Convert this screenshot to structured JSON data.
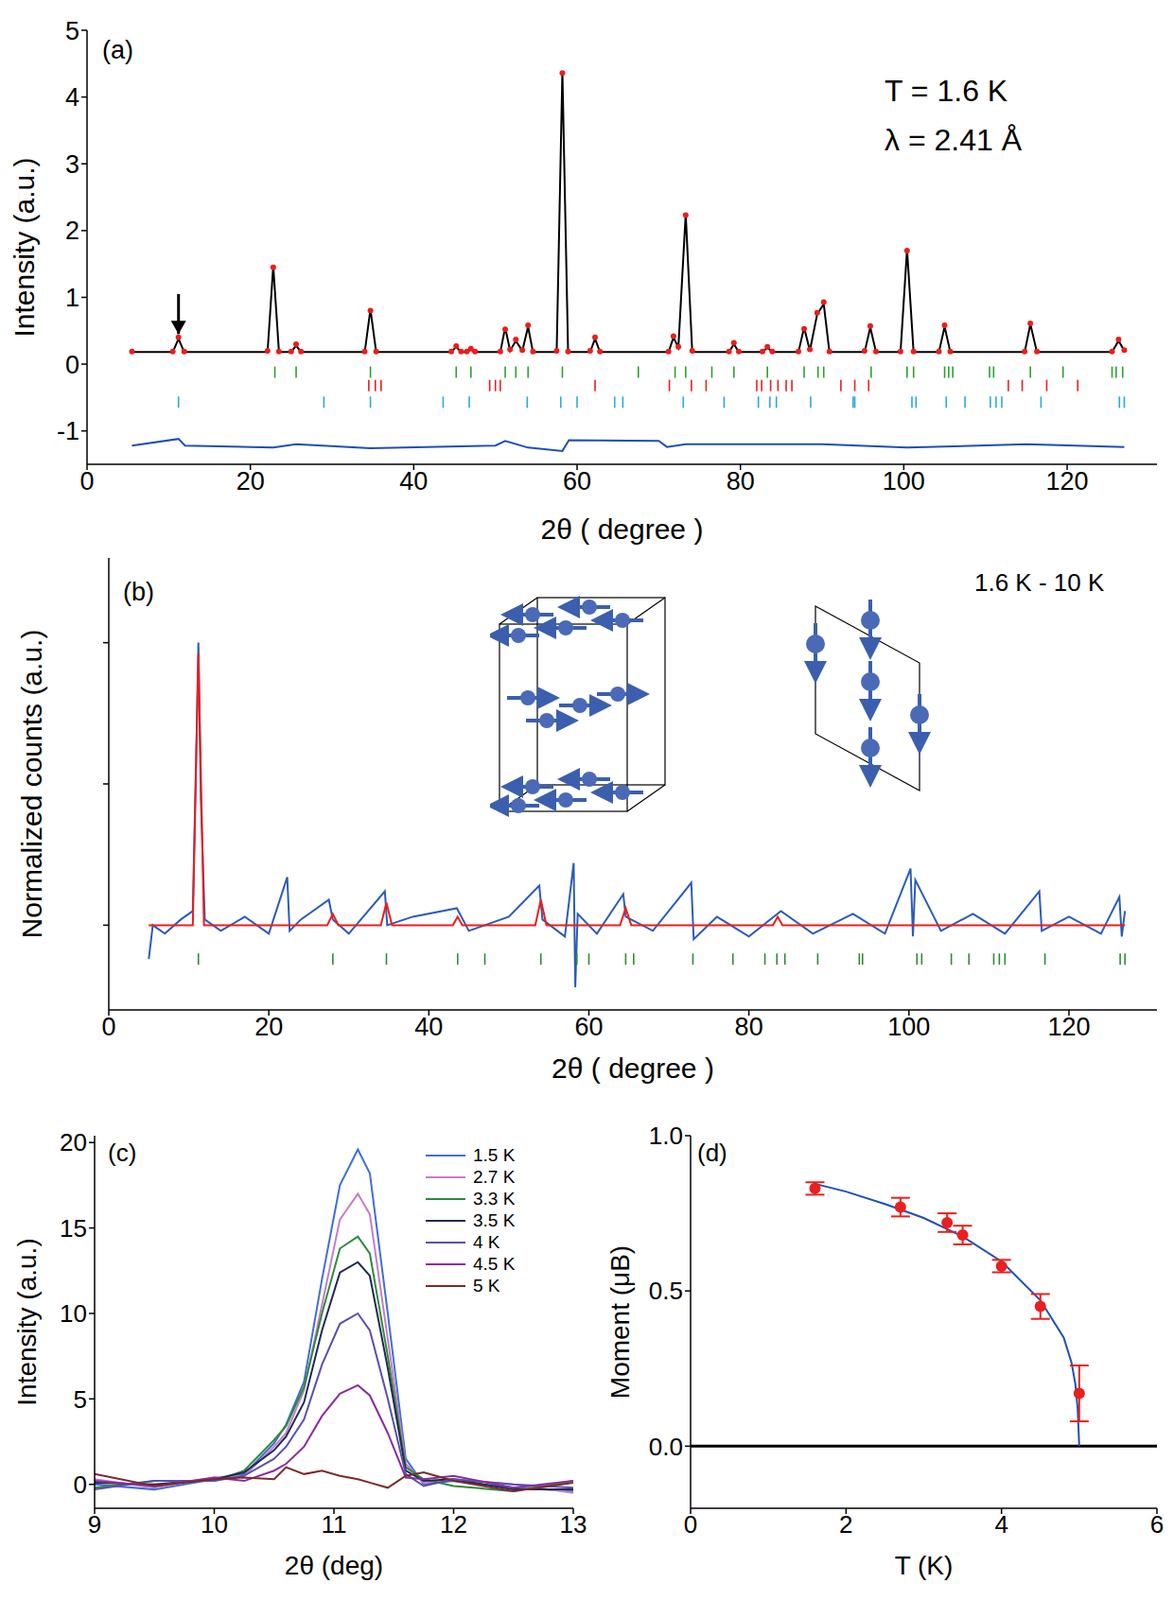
{
  "chart_data": [
    {
      "type": "line",
      "panel": "(a)",
      "annotations": [
        "T = 1.6 K",
        "λ = 2.41 Å"
      ],
      "x_label": "2θ ( degree )",
      "y_label": "Intensity (a.u.)",
      "xlim": [
        0,
        131
      ],
      "xticks": [
        0,
        20,
        40,
        60,
        80,
        100,
        120
      ],
      "ylim": [
        -1.5,
        5
      ],
      "yticks": [
        -1,
        0,
        1,
        2,
        3,
        4,
        5
      ],
      "arrow": {
        "x": 11.2,
        "y_from": 1.05,
        "y_to": 0.45
      },
      "series": [
        {
          "type": "scatter",
          "color": "#ee1c1c",
          "marker": "circle",
          "x": [
            5.5,
            10.5,
            11.2,
            11.9,
            22.1,
            22.8,
            23.5,
            25,
            25.6,
            26.2,
            34,
            34.7,
            35.4,
            44.6,
            45.2,
            45.8,
            46.5,
            47,
            47.5,
            50.6,
            51.2,
            51.8,
            52.5,
            53.3,
            54,
            54.6,
            57.5,
            58.2,
            58.9,
            61.6,
            62.2,
            62.8,
            71.2,
            71.8,
            72.4,
            73.3,
            74.1,
            78.6,
            79.2,
            79.8,
            82.7,
            83.3,
            83.9,
            87.1,
            87.8,
            88.5,
            89.4,
            90.2,
            90.9,
            95.2,
            95.9,
            96.6,
            99.6,
            100.4,
            101.2,
            104.3,
            105,
            105.7,
            114.8,
            115.5,
            116.3,
            125.5,
            126.3,
            127
          ],
          "values": [
            0.19,
            0.19,
            0.4,
            0.19,
            0.2,
            1.45,
            0.19,
            0.19,
            0.3,
            0.19,
            0.19,
            0.8,
            0.19,
            0.19,
            0.27,
            0.19,
            0.19,
            0.23,
            0.19,
            0.19,
            0.52,
            0.22,
            0.37,
            0.21,
            0.58,
            0.19,
            0.2,
            4.36,
            0.19,
            0.2,
            0.4,
            0.19,
            0.19,
            0.42,
            0.26,
            2.23,
            0.2,
            0.19,
            0.32,
            0.19,
            0.19,
            0.26,
            0.19,
            0.19,
            0.53,
            0.22,
            0.77,
            0.93,
            0.19,
            0.2,
            0.57,
            0.19,
            0.19,
            1.7,
            0.19,
            0.19,
            0.58,
            0.19,
            0.19,
            0.61,
            0.19,
            0.19,
            0.37,
            0.21
          ]
        },
        {
          "type": "line",
          "color": "#000000",
          "x": [
            5.5,
            10.5,
            11.2,
            11.9,
            22.1,
            22.8,
            23.5,
            25,
            25.6,
            26.2,
            34,
            34.7,
            35.4,
            44.6,
            45.2,
            45.8,
            46.5,
            47,
            47.5,
            50.6,
            51.2,
            51.8,
            52.5,
            53.3,
            54,
            54.6,
            57.5,
            58.2,
            58.9,
            61.6,
            62.2,
            62.8,
            71.2,
            71.8,
            72.4,
            73.3,
            74.1,
            78.6,
            79.2,
            79.8,
            82.7,
            83.3,
            83.9,
            87.1,
            87.8,
            88.5,
            89.4,
            90.2,
            90.9,
            95.2,
            95.9,
            96.6,
            99.6,
            100.4,
            101.2,
            104.3,
            105,
            105.7,
            114.8,
            115.5,
            116.3,
            125.5,
            126.3,
            127
          ],
          "values": [
            0.18,
            0.18,
            0.38,
            0.18,
            0.18,
            1.47,
            0.18,
            0.18,
            0.28,
            0.18,
            0.18,
            0.82,
            0.18,
            0.18,
            0.26,
            0.18,
            0.18,
            0.22,
            0.18,
            0.18,
            0.55,
            0.2,
            0.35,
            0.2,
            0.56,
            0.18,
            0.18,
            4.38,
            0.18,
            0.18,
            0.38,
            0.18,
            0.18,
            0.4,
            0.25,
            2.25,
            0.18,
            0.18,
            0.3,
            0.18,
            0.18,
            0.25,
            0.18,
            0.18,
            0.55,
            0.2,
            0.75,
            0.9,
            0.18,
            0.18,
            0.55,
            0.18,
            0.18,
            1.72,
            0.18,
            0.18,
            0.56,
            0.18,
            0.18,
            0.6,
            0.18,
            0.18,
            0.35,
            0.2
          ]
        },
        {
          "type": "line",
          "color": "#1f4fb5",
          "x": [
            5.5,
            11.2,
            12,
            22.8,
            25.6,
            34.7,
            50,
            51.2,
            54,
            58.2,
            59,
            70,
            71,
            73.3,
            90,
            100.4,
            115,
            127
          ],
          "values": [
            -1.22,
            -1.12,
            -1.22,
            -1.25,
            -1.2,
            -1.26,
            -1.22,
            -1.15,
            -1.25,
            -1.3,
            -1.14,
            -1.15,
            -1.24,
            -1.2,
            -1.2,
            -1.25,
            -1.2,
            -1.24
          ]
        }
      ],
      "tick_rows": [
        {
          "color": "#2ca02c",
          "y": -0.12,
          "positions": [
            23,
            25.6,
            34.7,
            45.2,
            47,
            51.2,
            52.5,
            54,
            58.2,
            67.5,
            72,
            73.3,
            76.5,
            79.2,
            83.3,
            87.8,
            89.5,
            90.2,
            96,
            100.4,
            101.2,
            105,
            105.5,
            106,
            110.5,
            111,
            115.5,
            119.5,
            125.5,
            126,
            126.8
          ]
        },
        {
          "color": "#e8201e",
          "y": -0.32,
          "positions": [
            34.5,
            35.3,
            36,
            49.3,
            50,
            50.6,
            62.2,
            71.3,
            74,
            75.8,
            82,
            82.6,
            83.7,
            84.6,
            85.6,
            86.3,
            92.3,
            94,
            95.7,
            112.8,
            114.5,
            117.5,
            121.3
          ]
        },
        {
          "color": "#29a9e0",
          "y": -0.57,
          "positions": [
            11.2,
            29,
            34.7,
            43.6,
            46.8,
            53.9,
            58,
            60,
            64.6,
            65.6,
            73,
            78,
            82.2,
            83.6,
            84.4,
            88.6,
            93.8,
            94,
            101,
            101.5,
            105.2,
            107.5,
            110.6,
            111.3,
            112,
            116.8,
            126.4,
            127
          ]
        }
      ]
    },
    {
      "type": "line",
      "panel": "(b)",
      "annotations": [
        "1.6 K - 10 K"
      ],
      "x_label": "2θ ( degree )",
      "y_label": "Normalized counts (a.u.)",
      "xlim": [
        0,
        131
      ],
      "xticks": [
        0,
        20,
        40,
        60,
        80,
        100,
        120
      ],
      "ylim": [
        -0.3,
        1.3
      ],
      "yticks": [
        0,
        0.5,
        1
      ],
      "tick_labels": "x",
      "series": [
        {
          "type": "line",
          "color": "#2a5cb8",
          "x": [
            5,
            5.5,
            7,
            9,
            10.5,
            11,
            11.2,
            11.5,
            12,
            14,
            17,
            20,
            22.3,
            22.6,
            24,
            27.5,
            28,
            30,
            34.5,
            34.8,
            38,
            43.5,
            45,
            50,
            53.8,
            54.2,
            57,
            58.1,
            58.3,
            58.6,
            61,
            64.3,
            64.6,
            68,
            72.8,
            73.1,
            76,
            80,
            84,
            88,
            93,
            97,
            100.2,
            100.5,
            100.8,
            104,
            108,
            112,
            116.3,
            116.6,
            120,
            124,
            126.3,
            126.6,
            127
          ],
          "values": [
            -0.12,
            0.0,
            -0.03,
            0.02,
            0.05,
            0.7,
            1.0,
            0.45,
            0.02,
            -0.02,
            0.03,
            -0.03,
            0.17,
            -0.02,
            0.02,
            0.09,
            0.02,
            -0.03,
            0.12,
            0.0,
            0.03,
            0.06,
            -0.02,
            0.03,
            0.14,
            0.02,
            -0.04,
            0.22,
            -0.22,
            0.04,
            -0.03,
            0.11,
            0.03,
            -0.02,
            0.15,
            -0.05,
            0.03,
            -0.04,
            0.05,
            -0.03,
            0.04,
            -0.03,
            0.2,
            -0.04,
            0.16,
            -0.02,
            0.04,
            -0.03,
            0.12,
            -0.02,
            0.03,
            -0.03,
            0.1,
            -0.04,
            0.05
          ]
        },
        {
          "type": "line",
          "color": "#ee1c1c",
          "x": [
            5,
            10.5,
            11.2,
            11.9,
            27.3,
            28,
            28.7,
            34,
            34.7,
            35.4,
            43,
            43.6,
            44.2,
            53.3,
            54,
            54.7,
            63.9,
            64.6,
            65.3,
            83,
            83.6,
            84.2,
            127
          ],
          "values": [
            0,
            0,
            0.96,
            0,
            0,
            0.04,
            0,
            0,
            0.08,
            0,
            0,
            0.03,
            0,
            0,
            0.09,
            0,
            0,
            0.06,
            0,
            0,
            0.03,
            0,
            0
          ]
        }
      ],
      "tick_rows": [
        {
          "color": "#2e8b2e",
          "y": -0.12,
          "positions": [
            11.2,
            28,
            34.7,
            43.6,
            47,
            54,
            58.5,
            60,
            64.6,
            65.6,
            73,
            78,
            82,
            83.5,
            84.5,
            88.6,
            93.8,
            94.2,
            101,
            101.6,
            105.3,
            107.5,
            110.6,
            111.3,
            112,
            117,
            126.4,
            127
          ]
        }
      ]
    },
    {
      "type": "line",
      "panel": "(c)",
      "x_label": "2θ (deg)",
      "y_label": "Intensity (a.u.)",
      "xlim": [
        9,
        13
      ],
      "xticks": [
        9,
        10,
        11,
        12,
        13
      ],
      "ylim": [
        -1.4,
        20.4
      ],
      "yticks": [
        0,
        5,
        10,
        15,
        20
      ],
      "legend": "top-right",
      "x": [
        9,
        9.5,
        10,
        10.25,
        10.5,
        10.6,
        10.75,
        10.9,
        11.05,
        11.2,
        11.3,
        11.45,
        11.6,
        11.75,
        12,
        12.5,
        13
      ],
      "series": [
        {
          "name": "1.5 K",
          "color": "#3f6fd8",
          "values": [
            0,
            -0.3,
            0.3,
            0.6,
            2.4,
            3.5,
            6,
            12,
            17.5,
            19.6,
            18.2,
            10,
            1.5,
            0,
            0.2,
            -0.2,
            -0.4
          ]
        },
        {
          "name": "2.7 K",
          "color": "#c77dc7",
          "values": [
            0.3,
            -0.2,
            0.4,
            0.5,
            2.2,
            3,
            5.5,
            10.5,
            15.5,
            17,
            15.8,
            8.5,
            1.2,
            0.1,
            0.3,
            0,
            -0.5
          ]
        },
        {
          "name": "3.3 K",
          "color": "#2e8b3a",
          "values": [
            -0.2,
            0.2,
            0.2,
            0.8,
            2.6,
            3.4,
            5.7,
            10,
            13.8,
            14.5,
            13.5,
            7.5,
            1,
            0.3,
            -0.1,
            -0.4,
            0.2
          ]
        },
        {
          "name": "3.5 K",
          "color": "#1f2a50",
          "values": [
            0.1,
            0,
            0.3,
            0.7,
            2,
            2.8,
            4.8,
            9,
            12.4,
            13,
            12.2,
            6.8,
            0.8,
            0.2,
            0.3,
            -0.3,
            -0.3
          ]
        },
        {
          "name": "4 K",
          "color": "#5b4fae",
          "values": [
            -0.3,
            0.2,
            0.2,
            0.5,
            1.5,
            2.2,
            3.8,
            7,
            9.4,
            10,
            9,
            5,
            0.6,
            -0.1,
            0.3,
            0,
            -0.2
          ]
        },
        {
          "name": "4.5 K",
          "color": "#8b2c9e",
          "values": [
            0.2,
            -0.1,
            0.4,
            0.2,
            0.8,
            1.2,
            2.2,
            4,
            5.3,
            5.8,
            5.2,
            3,
            0.4,
            0.3,
            0.5,
            -0.2,
            0.2
          ]
        },
        {
          "name": "5 K",
          "color": "#7b2b2b",
          "values": [
            0.6,
            -0.1,
            0.3,
            0.4,
            0.3,
            1,
            0.6,
            0.8,
            0.5,
            0.3,
            0.1,
            -0.2,
            0.5,
            0.7,
            0.2,
            -0.4,
            0.1
          ]
        }
      ]
    },
    {
      "type": "scatter",
      "panel": "(d)",
      "x_label": "T (K)",
      "y_label": "Moment (μB)",
      "xlim": [
        0,
        6
      ],
      "xticks": [
        0,
        2,
        4,
        6
      ],
      "ylim": [
        -0.2,
        1.0
      ],
      "yticks": [
        {
          "value": 0,
          "label": "0.0"
        },
        {
          "value": 0.5,
          "label": "0.5"
        },
        {
          "value": 1,
          "label": "1.0"
        }
      ],
      "series": [
        {
          "type": "line",
          "color": "#000000",
          "x": [
            0,
            6
          ],
          "values": [
            0,
            0
          ]
        },
        {
          "type": "line",
          "color": "#1f4fb5",
          "x": [
            1.6,
            2,
            2.5,
            3,
            3.5,
            4,
            4.5,
            4.8,
            4.9,
            4.95,
            4.98,
            5
          ],
          "values": [
            0.845,
            0.82,
            0.78,
            0.735,
            0.675,
            0.595,
            0.47,
            0.35,
            0.27,
            0.2,
            0.12,
            0
          ]
        },
        {
          "type": "scatter",
          "color": "#e8201e",
          "marker": "circle",
          "x": [
            1.6,
            2.7,
            3.3,
            3.5,
            4,
            4.5,
            5
          ],
          "values": [
            0.83,
            0.77,
            0.72,
            0.68,
            0.58,
            0.45,
            0.17
          ],
          "errors": [
            0.02,
            0.03,
            0.03,
            0.03,
            0.02,
            0.04,
            0.09
          ]
        }
      ]
    }
  ]
}
